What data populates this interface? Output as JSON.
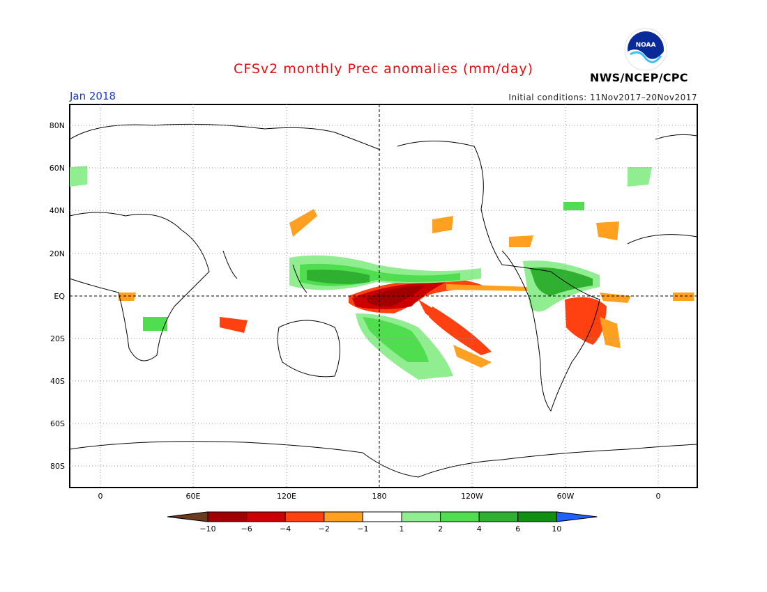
{
  "title": "CFSv2 monthly Prec anomalies (mm/day)",
  "month": "Jan 2018",
  "initial_conditions": "Initial conditions: 11Nov2017–20Nov2017",
  "agency": "NWS/NCEP/CPC",
  "logo_text": "NOAA",
  "lat_labels": [
    "80N",
    "60N",
    "40N",
    "20N",
    "EQ",
    "20S",
    "40S",
    "60S",
    "80S"
  ],
  "lon_labels": [
    "0",
    "60E",
    "120E",
    "180",
    "120W",
    "60W",
    "0"
  ],
  "colorbar": {
    "ticks": [
      "−10",
      "−6",
      "−4",
      "−2",
      "−1",
      "1",
      "2",
      "4",
      "6",
      "10"
    ],
    "colors": [
      "#6b3a1f",
      "#a00000",
      "#cc0000",
      "#ff4010",
      "#ffa020",
      "#ffffff",
      "#90ee90",
      "#50dd50",
      "#30b030",
      "#109010",
      "#2060ff"
    ]
  }
}
